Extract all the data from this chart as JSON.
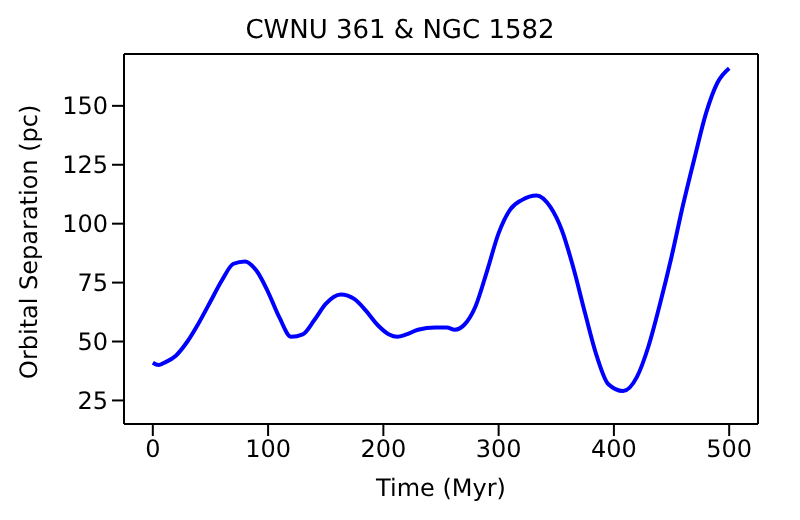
{
  "chart_data": {
    "type": "line",
    "title": "CWNU 361 & NGC 1582",
    "xlabel": "Time (Myr)",
    "ylabel": "Orbital Separation (pc)",
    "x": [
      0,
      5,
      10,
      20,
      30,
      40,
      50,
      60,
      70,
      80,
      90,
      100,
      110,
      120,
      130,
      140,
      150,
      163,
      175,
      185,
      195,
      205,
      212,
      220,
      230,
      245,
      255,
      262,
      270,
      280,
      290,
      300,
      310,
      320,
      333,
      345,
      355,
      365,
      375,
      385,
      395,
      408,
      420,
      430,
      440,
      450,
      460,
      470,
      480,
      490,
      500
    ],
    "series": [
      {
        "color": "#0000ff",
        "values": [
          41,
          40,
          41,
          44,
          50,
          58,
          67,
          76,
          83,
          84,
          80,
          71,
          60,
          52,
          53,
          59,
          66,
          70,
          68,
          63,
          57,
          53,
          52,
          53,
          55,
          56,
          56,
          55,
          57,
          65,
          80,
          96,
          106,
          110,
          112,
          107,
          97,
          81,
          62,
          44,
          32,
          29,
          35,
          48,
          66,
          86,
          108,
          128,
          147,
          160,
          166
        ]
      }
    ],
    "xlim": [
      -25,
      525
    ],
    "xticks": [
      0,
      100,
      200,
      300,
      400,
      500
    ],
    "ylim": [
      15,
      172
    ],
    "yticks": [
      25,
      50,
      75,
      100,
      125,
      150
    ],
    "marker": "none",
    "line_style": "solid"
  }
}
